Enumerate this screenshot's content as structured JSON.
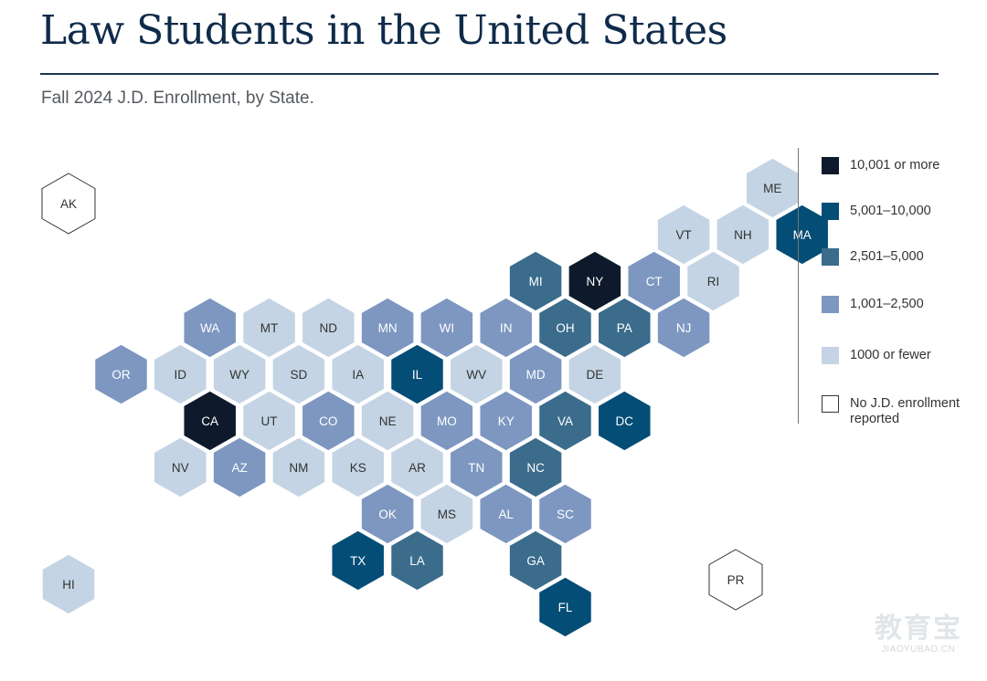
{
  "header": {
    "title": "Law Students in the United States",
    "subtitle": "Fall 2024 J.D. Enrollment, by State."
  },
  "colors": {
    "c5": "#0e1a2b",
    "c4": "#044d76",
    "c3": "#3b6c8c",
    "c2": "#7d97c0",
    "c1": "#c4d4e4",
    "c0": "#ffffff",
    "text_dark": "#333333",
    "text_light": "#ffffff"
  },
  "legend": [
    {
      "key": "c5",
      "label": "10,001 or more"
    },
    {
      "key": "c4",
      "label": "5,001–10,000"
    },
    {
      "key": "c3",
      "label": "2,501–5,000"
    },
    {
      "key": "c2",
      "label": "1,001–2,500"
    },
    {
      "key": "c1",
      "label": "1000 or fewer"
    },
    {
      "key": "c0",
      "label": "No J.D. enrollment reported"
    }
  ],
  "states": [
    {
      "abbr": "AK",
      "cat": "c0",
      "col": 0,
      "row": 0
    },
    {
      "abbr": "ME",
      "cat": "c1",
      "col": 11,
      "row": 0
    },
    {
      "abbr": "VT",
      "cat": "c1",
      "col": 9,
      "row": 1
    },
    {
      "abbr": "NH",
      "cat": "c1",
      "col": 10,
      "row": 1
    },
    {
      "abbr": "MA",
      "cat": "c4",
      "col": 11,
      "row": 1
    },
    {
      "abbr": "MI",
      "cat": "c3",
      "col": 7,
      "row": 2
    },
    {
      "abbr": "NY",
      "cat": "c5",
      "col": 8,
      "row": 2
    },
    {
      "abbr": "CT",
      "cat": "c2",
      "col": 9,
      "row": 2
    },
    {
      "abbr": "RI",
      "cat": "c1",
      "col": 10,
      "row": 2
    },
    {
      "abbr": "WA",
      "cat": "c2",
      "col": 1,
      "row": 3
    },
    {
      "abbr": "MT",
      "cat": "c1",
      "col": 2,
      "row": 3
    },
    {
      "abbr": "ND",
      "cat": "c1",
      "col": 3,
      "row": 3
    },
    {
      "abbr": "MN",
      "cat": "c2",
      "col": 4,
      "row": 3
    },
    {
      "abbr": "WI",
      "cat": "c2",
      "col": 5,
      "row": 3
    },
    {
      "abbr": "IN",
      "cat": "c2",
      "col": 6,
      "row": 3
    },
    {
      "abbr": "OH",
      "cat": "c3",
      "col": 7,
      "row": 3
    },
    {
      "abbr": "PA",
      "cat": "c3",
      "col": 8,
      "row": 3
    },
    {
      "abbr": "NJ",
      "cat": "c2",
      "col": 9,
      "row": 3
    },
    {
      "abbr": "OR",
      "cat": "c2",
      "col": 0,
      "row": 4
    },
    {
      "abbr": "ID",
      "cat": "c1",
      "col": 1,
      "row": 4
    },
    {
      "abbr": "WY",
      "cat": "c1",
      "col": 2,
      "row": 4
    },
    {
      "abbr": "SD",
      "cat": "c1",
      "col": 3,
      "row": 4
    },
    {
      "abbr": "IA",
      "cat": "c1",
      "col": 4,
      "row": 4
    },
    {
      "abbr": "IL",
      "cat": "c4",
      "col": 5,
      "row": 4
    },
    {
      "abbr": "WV",
      "cat": "c1",
      "col": 6,
      "row": 4
    },
    {
      "abbr": "MD",
      "cat": "c2",
      "col": 7,
      "row": 4
    },
    {
      "abbr": "DE",
      "cat": "c1",
      "col": 8,
      "row": 4
    },
    {
      "abbr": "CA",
      "cat": "c5",
      "col": 1,
      "row": 5
    },
    {
      "abbr": "UT",
      "cat": "c1",
      "col": 2,
      "row": 5
    },
    {
      "abbr": "CO",
      "cat": "c2",
      "col": 3,
      "row": 5
    },
    {
      "abbr": "NE",
      "cat": "c1",
      "col": 4,
      "row": 5
    },
    {
      "abbr": "MO",
      "cat": "c2",
      "col": 5,
      "row": 5
    },
    {
      "abbr": "KY",
      "cat": "c2",
      "col": 6,
      "row": 5
    },
    {
      "abbr": "VA",
      "cat": "c3",
      "col": 7,
      "row": 5
    },
    {
      "abbr": "DC",
      "cat": "c4",
      "col": 8,
      "row": 5
    },
    {
      "abbr": "NV",
      "cat": "c1",
      "col": 1,
      "row": 6
    },
    {
      "abbr": "AZ",
      "cat": "c2",
      "col": 2,
      "row": 6
    },
    {
      "abbr": "NM",
      "cat": "c1",
      "col": 3,
      "row": 6
    },
    {
      "abbr": "KS",
      "cat": "c1",
      "col": 4,
      "row": 6
    },
    {
      "abbr": "AR",
      "cat": "c1",
      "col": 5,
      "row": 6
    },
    {
      "abbr": "TN",
      "cat": "c2",
      "col": 6,
      "row": 6
    },
    {
      "abbr": "NC",
      "cat": "c3",
      "col": 7,
      "row": 6
    },
    {
      "abbr": "OK",
      "cat": "c2",
      "col": 4,
      "row": 7
    },
    {
      "abbr": "MS",
      "cat": "c1",
      "col": 5,
      "row": 7
    },
    {
      "abbr": "AL",
      "cat": "c2",
      "col": 6,
      "row": 7
    },
    {
      "abbr": "SC",
      "cat": "c2",
      "col": 7,
      "row": 7
    },
    {
      "abbr": "HI",
      "cat": "c1",
      "col": 0,
      "row": 8
    },
    {
      "abbr": "TX",
      "cat": "c4",
      "col": 4,
      "row": 8
    },
    {
      "abbr": "LA",
      "cat": "c3",
      "col": 5,
      "row": 8
    },
    {
      "abbr": "GA",
      "cat": "c3",
      "col": 7,
      "row": 8
    },
    {
      "abbr": "PR",
      "cat": "c0",
      "col": 11,
      "row": 8
    },
    {
      "abbr": "FL",
      "cat": "c4",
      "col": 7,
      "row": 9
    }
  ]
}
